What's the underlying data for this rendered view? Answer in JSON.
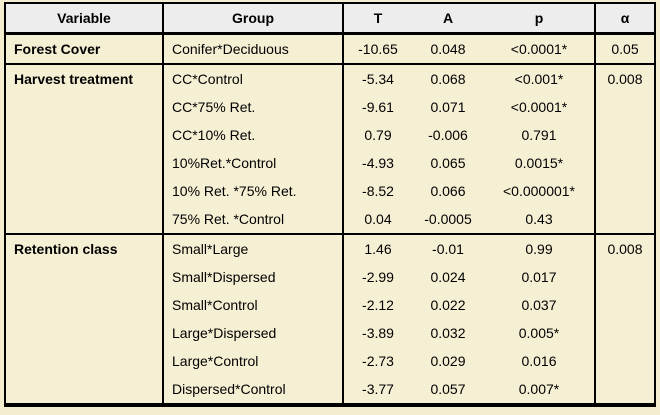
{
  "page": {
    "background": "#F4EDD0"
  },
  "table": {
    "colors": {
      "header_bg": "#EDEDED",
      "row_bg": "#F5EFD3",
      "border": "#000000"
    },
    "headers": {
      "variable": "Variable",
      "group": "Group",
      "t": "T",
      "a": "A",
      "p": "p",
      "alpha": "α"
    },
    "rows": [
      {
        "variable": "Forest Cover",
        "group": "Conifer*Deciduous",
        "t": "-10.65",
        "a": "0.048",
        "p": "<0.0001*",
        "alpha": "0.05"
      },
      {
        "variable": "Harvest treatment",
        "group": "CC*Control",
        "t": "-5.34",
        "a": "0.068",
        "p": "<0.001*",
        "alpha": "0.008"
      },
      {
        "variable": "",
        "group": "CC*75% Ret.",
        "t": "-9.61",
        "a": "0.071",
        "p": "<0.0001*",
        "alpha": ""
      },
      {
        "variable": "",
        "group": "CC*10% Ret.",
        "t": "0.79",
        "a": "-0.006",
        "p": "0.791",
        "alpha": ""
      },
      {
        "variable": "",
        "group": "10%Ret.*Control",
        "t": "-4.93",
        "a": "0.065",
        "p": "0.0015*",
        "alpha": ""
      },
      {
        "variable": "",
        "group": "10% Ret. *75% Ret.",
        "t": "-8.52",
        "a": "0.066",
        "p": "<0.000001*",
        "alpha": ""
      },
      {
        "variable": "",
        "group": "75% Ret. *Control",
        "t": "0.04",
        "a": "-0.0005",
        "p": "0.43",
        "alpha": ""
      },
      {
        "variable": "Retention class",
        "group": "Small*Large",
        "t": "1.46",
        "a": "-0.01",
        "p": "0.99",
        "alpha": "0.008"
      },
      {
        "variable": "",
        "group": "Small*Dispersed",
        "t": "-2.99",
        "a": "0.024",
        "p": "0.017",
        "alpha": ""
      },
      {
        "variable": "",
        "group": "Small*Control",
        "t": "-2.12",
        "a": "0.022",
        "p": "0.037",
        "alpha": ""
      },
      {
        "variable": "",
        "group": "Large*Dispersed",
        "t": "-3.89",
        "a": "0.032",
        "p": "0.005*",
        "alpha": ""
      },
      {
        "variable": "",
        "group": "Large*Control",
        "t": "-2.73",
        "a": "0.029",
        "p": "0.016",
        "alpha": ""
      },
      {
        "variable": "",
        "group": "Dispersed*Control",
        "t": "-3.77",
        "a": "0.057",
        "p": "0.007*",
        "alpha": ""
      }
    ]
  }
}
